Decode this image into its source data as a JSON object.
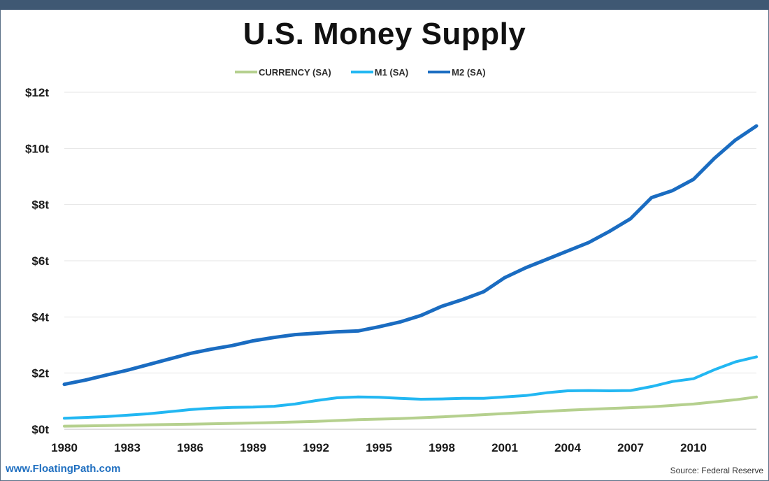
{
  "footer": {
    "site": "www.FloatingPath.com",
    "source": "Source: Federal Reserve"
  },
  "chart_data": {
    "type": "line",
    "title": "U.S. Money Supply",
    "xlabel": "",
    "ylabel": "",
    "xlim": [
      1980,
      2013
    ],
    "ylim": [
      0,
      12
    ],
    "x_ticks": [
      1980,
      1983,
      1986,
      1989,
      1992,
      1995,
      1998,
      2001,
      2004,
      2007,
      2010
    ],
    "x_tick_labels": [
      "1980",
      "1983",
      "1986",
      "1989",
      "1992",
      "1995",
      "1998",
      "2001",
      "2004",
      "2007",
      "2010"
    ],
    "y_ticks": [
      0,
      2,
      4,
      6,
      8,
      10,
      12
    ],
    "y_tick_labels": [
      "$0t",
      "$2t",
      "$4t",
      "$6t",
      "$8t",
      "$10t",
      "$12t"
    ],
    "grid": true,
    "legend_position": "top-center",
    "series": [
      {
        "name": "CURRENCY (SA)",
        "color": "#b5d08e",
        "x": [
          1980,
          1982,
          1984,
          1986,
          1988,
          1990,
          1992,
          1994,
          1996,
          1998,
          2000,
          2002,
          2004,
          2006,
          2008,
          2010,
          2012,
          2013
        ],
        "values": [
          0.11,
          0.13,
          0.16,
          0.18,
          0.21,
          0.24,
          0.28,
          0.34,
          0.38,
          0.44,
          0.52,
          0.6,
          0.68,
          0.74,
          0.8,
          0.9,
          1.05,
          1.15
        ]
      },
      {
        "name": "M1 (SA)",
        "color": "#22b7f2",
        "x": [
          1980,
          1982,
          1984,
          1986,
          1987,
          1988,
          1989,
          1990,
          1991,
          1992,
          1993,
          1994,
          1995,
          1996,
          1997,
          1998,
          1999,
          2000,
          2001,
          2002,
          2003,
          2004,
          2005,
          2006,
          2007,
          2008,
          2009,
          2010,
          2011,
          2012,
          2013
        ],
        "values": [
          0.39,
          0.45,
          0.55,
          0.7,
          0.75,
          0.78,
          0.79,
          0.82,
          0.9,
          1.02,
          1.12,
          1.15,
          1.14,
          1.1,
          1.07,
          1.08,
          1.1,
          1.1,
          1.15,
          1.2,
          1.3,
          1.37,
          1.38,
          1.37,
          1.38,
          1.52,
          1.7,
          1.8,
          2.12,
          2.4,
          2.58
        ]
      },
      {
        "name": "M2 (SA)",
        "color": "#1a6cc1",
        "x": [
          1980,
          1981,
          1982,
          1983,
          1984,
          1985,
          1986,
          1987,
          1988,
          1989,
          1990,
          1991,
          1992,
          1993,
          1994,
          1995,
          1996,
          1997,
          1998,
          1999,
          2000,
          2001,
          2002,
          2003,
          2004,
          2005,
          2006,
          2007,
          2008,
          2009,
          2010,
          2011,
          2012,
          2013
        ],
        "values": [
          1.6,
          1.75,
          1.93,
          2.1,
          2.3,
          2.5,
          2.7,
          2.85,
          2.98,
          3.15,
          3.27,
          3.37,
          3.42,
          3.47,
          3.5,
          3.65,
          3.82,
          4.05,
          4.38,
          4.62,
          4.9,
          5.4,
          5.75,
          6.05,
          6.35,
          6.65,
          7.05,
          7.5,
          8.25,
          8.5,
          8.9,
          9.65,
          10.3,
          10.8
        ]
      }
    ]
  }
}
